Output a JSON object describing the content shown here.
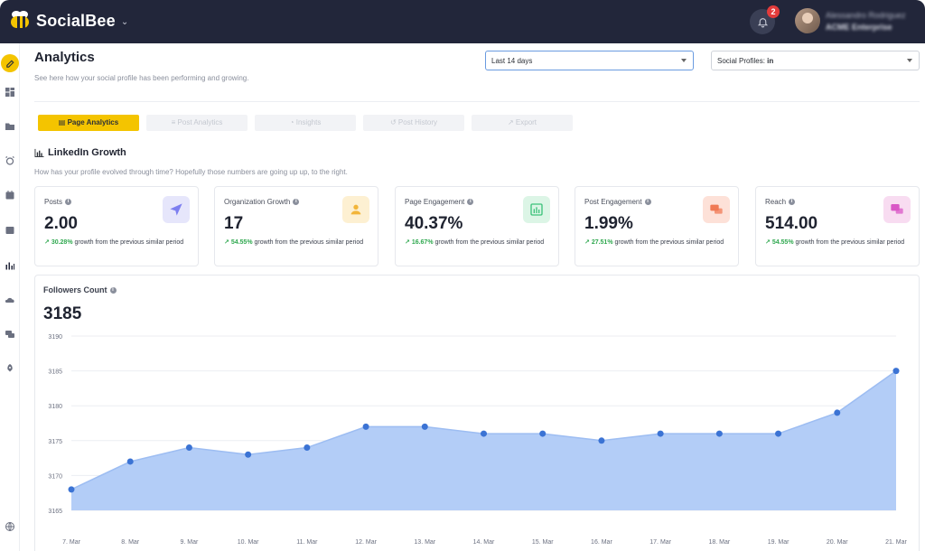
{
  "app": {
    "name": "SocialBee"
  },
  "topbar": {
    "notification_count": "2",
    "user_name": "Alessandro Rodriguez",
    "user_org": "ACME Enterprise"
  },
  "header": {
    "title": "Analytics",
    "subtitle": "See here how your social profile has been performing and growing.",
    "date_range": "Last 14 days",
    "profiles_label": "Social Profiles:",
    "profiles_value": "in"
  },
  "tabs": [
    {
      "label": "Page Analytics",
      "icon": "chart-bar-icon",
      "active": true
    },
    {
      "label": "Post Analytics",
      "icon": "list-icon",
      "active": false
    },
    {
      "label": "Insights",
      "icon": "globe-icon",
      "active": false
    },
    {
      "label": "Post History",
      "icon": "history-icon",
      "active": false
    },
    {
      "label": "Export",
      "icon": "export-icon",
      "active": false
    }
  ],
  "section": {
    "title": "LinkedIn Growth",
    "description": "How has your profile evolved through time? Hopefully those numbers are going up up, to the right."
  },
  "stats": [
    {
      "label": "Posts",
      "value": "2.00",
      "growth": "30.28%",
      "growth_text": "growth from the previous similar period",
      "icon": "send-icon",
      "icon_bg": "#e6e6fb",
      "icon_color": "#7d7ff0"
    },
    {
      "label": "Organization Growth",
      "value": "17",
      "growth": "54.55%",
      "growth_text": "growth from the previous similar period",
      "icon": "users-icon",
      "icon_bg": "#fdf0d2",
      "icon_color": "#f2b53a"
    },
    {
      "label": "Page Engagement",
      "value": "40.37%",
      "growth": "16.67%",
      "growth_text": "growth from the previous similar period",
      "icon": "bar-chart-icon",
      "icon_bg": "#dcf5e6",
      "icon_color": "#3cc27a"
    },
    {
      "label": "Post Engagement",
      "value": "1.99%",
      "growth": "27.51%",
      "growth_text": "growth from the previous similar period",
      "icon": "comments-icon",
      "icon_bg": "#fde1d8",
      "icon_color": "#f07a55"
    },
    {
      "label": "Reach",
      "value": "514.00",
      "growth": "54.55%",
      "growth_text": "growth from the previous similar period",
      "icon": "chat-icon",
      "icon_bg": "#f8dcf1",
      "icon_color": "#d957c6"
    }
  ],
  "followers": {
    "label": "Followers Count",
    "value": "3185"
  },
  "chart_data": {
    "type": "area",
    "title": "Followers Count",
    "xlabel": "",
    "ylabel": "",
    "x": [
      "7. Mar",
      "8. Mar",
      "9. Mar",
      "10. Mar",
      "11. Mar",
      "12. Mar",
      "13. Mar",
      "14. Mar",
      "15. Mar",
      "16. Mar",
      "17. Mar",
      "18. Mar",
      "19. Mar",
      "20. Mar",
      "21. Mar"
    ],
    "series": [
      {
        "values": [
          3168,
          3172,
          3174,
          3173,
          3174,
          3177,
          3177,
          3176,
          3176,
          3175,
          3176,
          3176,
          3176,
          3179,
          3185
        ]
      }
    ],
    "ylim": [
      3165,
      3190
    ],
    "yticks": [
      3165,
      3170,
      3175,
      3180,
      3185,
      3190
    ],
    "grid": true,
    "legend": "none",
    "color_fill": "#b3cdf7",
    "color_point": "#3b73d4"
  },
  "colors": {
    "accent": "#f4c400",
    "topbar": "#22263a",
    "positive": "#2fa84f"
  },
  "sidebar": {
    "items": [
      {
        "icon": "edit-icon",
        "active": true
      },
      {
        "icon": "dashboard-icon"
      },
      {
        "icon": "folder-icon"
      },
      {
        "icon": "alarm-icon"
      },
      {
        "icon": "calendar-icon"
      },
      {
        "icon": "inbox-icon"
      },
      {
        "icon": "analytics-icon"
      },
      {
        "icon": "cloud-icon"
      },
      {
        "icon": "messages-icon"
      },
      {
        "icon": "rocket-icon"
      },
      {
        "icon": "globe-icon"
      }
    ]
  }
}
